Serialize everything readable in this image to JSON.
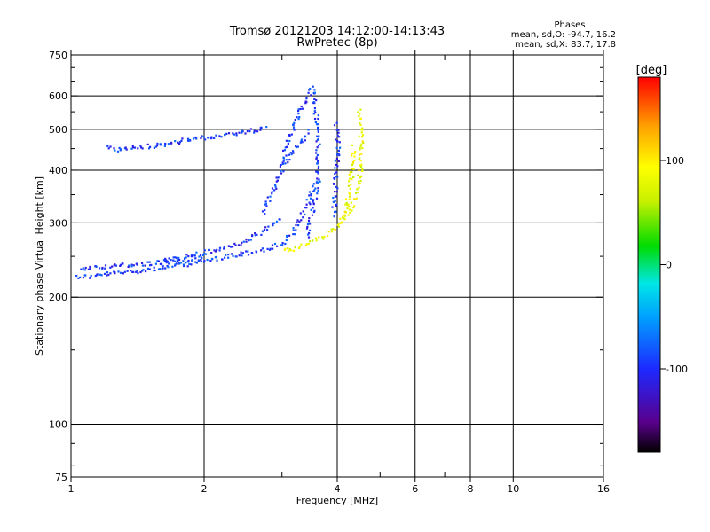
{
  "chart_data": {
    "type": "scatter",
    "title": "Tromsø 20121203 14:12:00-14:13:43",
    "subtitle": "RwPretec (8p)",
    "xlabel": "Frequency [MHz]",
    "ylabel": "Stationary phase Virtual Height [km]",
    "xscale": "log",
    "yscale": "log",
    "xlim": [
      1,
      16
    ],
    "ylim": [
      75,
      750
    ],
    "xticks": [
      1,
      2,
      4,
      6,
      8,
      10,
      16
    ],
    "xtick_labels": [
      "1",
      "2",
      "4",
      "6",
      "8",
      "10",
      "16"
    ],
    "xminor": [
      3,
      5,
      7,
      9
    ],
    "yticks": [
      75,
      100,
      200,
      300,
      400,
      500,
      600,
      750
    ],
    "ytick_labels": [
      "75",
      "100",
      "200",
      "300",
      "400",
      "500",
      "600",
      "750"
    ],
    "yminor": [
      80,
      90,
      150,
      250,
      350,
      450,
      550,
      650,
      700
    ],
    "grid": true,
    "info": {
      "heading": "Phases",
      "line1": "mean, sd,O: -94.7, 16.2",
      "line2": "mean, sd,X:  83.7, 17.8"
    },
    "colorbar": {
      "label": "[deg]",
      "range": [
        -180,
        180
      ],
      "ticks": [
        100,
        0,
        -100
      ],
      "tick_labels": [
        "100",
        "0",
        "-100"
      ]
    },
    "series": [
      {
        "name": "O",
        "phase": -94.7,
        "segments": [
          {
            "f": [
              1.02,
              1.1,
              1.2,
              1.4,
              1.6,
              1.8,
              2.0,
              2.2,
              2.5,
              2.8,
              3.0,
              3.2,
              3.4,
              3.55
            ],
            "h": [
              225,
              225,
              228,
              232,
              236,
              240,
              245,
              250,
              256,
              262,
              270,
              290,
              330,
              380
            ]
          },
          {
            "f": [
              1.05,
              1.1,
              1.2,
              1.4,
              1.6,
              1.8,
              2.0
            ],
            "h": [
              236,
              236,
              238,
              240,
              243,
              246,
              250
            ]
          },
          {
            "f": [
              1.6,
              1.8,
              2.0,
              2.2,
              2.4,
              2.6,
              2.8,
              3.0
            ],
            "h": [
              245,
              250,
              256,
              262,
              270,
              280,
              295,
              310
            ]
          },
          {
            "f": [
              1.2,
              1.25,
              1.4,
              1.55,
              1.7,
              1.85,
              2.0,
              2.2,
              2.4,
              2.6,
              2.75
            ],
            "h": [
              455,
              450,
              455,
              460,
              468,
              475,
              480,
              487,
              493,
              500,
              508
            ]
          },
          {
            "f": [
              2.7,
              2.85,
              3.0,
              3.15,
              3.3,
              3.45
            ],
            "h": [
              320,
              360,
              410,
              440,
              470,
              500
            ]
          },
          {
            "f": [
              3.4,
              3.5,
              3.6,
              3.6,
              3.58,
              3.55,
              3.5
            ],
            "h": [
              280,
              320,
              380,
              450,
              520,
              580,
              640
            ]
          },
          {
            "f": [
              3.0,
              3.1,
              3.25,
              3.4,
              3.5
            ],
            "h": [
              420,
              480,
              540,
              600,
              630
            ]
          },
          {
            "f": [
              3.9,
              3.95,
              4.0,
              3.95
            ],
            "h": [
              310,
              380,
              450,
              520
            ]
          }
        ]
      },
      {
        "name": "X",
        "phase": 83.7,
        "segments": [
          {
            "f": [
              3.0,
              3.2,
              3.4,
              3.6,
              3.8,
              4.0,
              4.2,
              4.35,
              4.45,
              4.5,
              4.52,
              4.5,
              4.45
            ],
            "h": [
              258,
              262,
              268,
              276,
              286,
              298,
              316,
              340,
              370,
              410,
              460,
              510,
              560
            ]
          },
          {
            "f": [
              4.1,
              4.2,
              4.3,
              4.35
            ],
            "h": [
              300,
              340,
              400,
              460
            ]
          }
        ]
      }
    ]
  }
}
